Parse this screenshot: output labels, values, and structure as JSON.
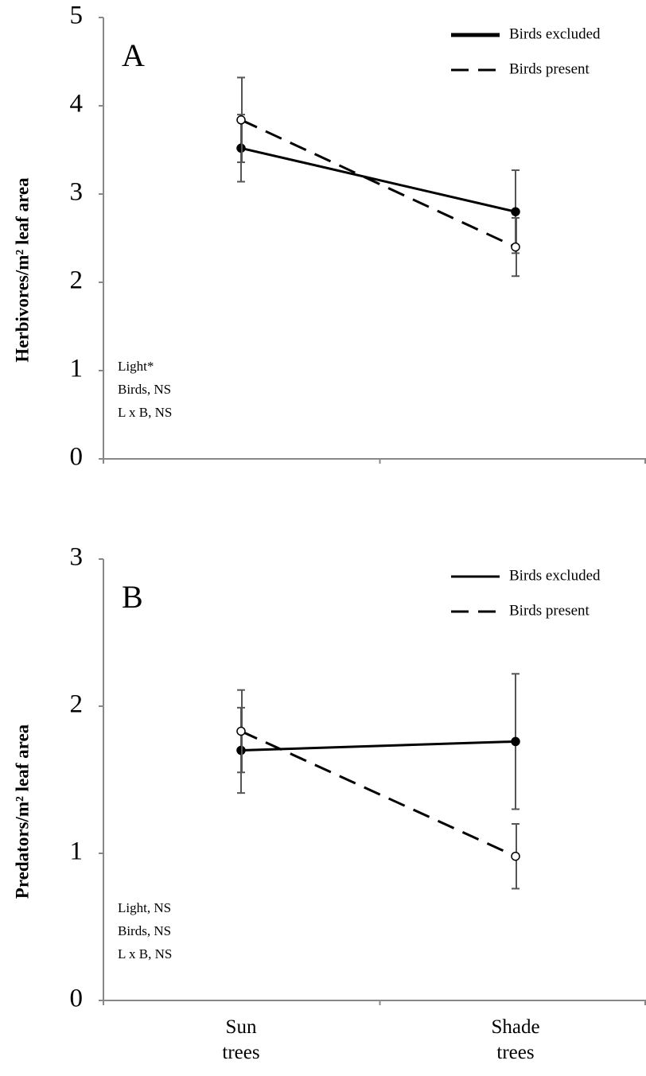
{
  "chart_data": [
    {
      "type": "line",
      "panel_label": "A",
      "ylabel": "Herbivores/m² leaf area",
      "categories": [
        null,
        null
      ],
      "series": [
        {
          "name": "Birds excluded",
          "color": "#000000",
          "linestyle": "solid",
          "marker": "filled",
          "values": [
            3.52,
            2.8
          ],
          "errors": [
            0.38,
            0.47
          ]
        },
        {
          "name": "Birds present",
          "color": "#000000",
          "linestyle": "dashed",
          "marker": "open",
          "values": [
            3.84,
            2.4
          ],
          "errors": [
            0.48,
            0.33
          ]
        }
      ],
      "ylim": [
        0,
        5
      ],
      "yticks": [
        0,
        1,
        2,
        3,
        4,
        5
      ],
      "legend": "upper right",
      "annotations": [
        "Light*",
        "Birds, NS",
        "L x B, NS"
      ]
    },
    {
      "type": "line",
      "panel_label": "B",
      "ylabel": "Predators/m² leaf area",
      "categories": [
        "Sun trees",
        "Shade trees"
      ],
      "series": [
        {
          "name": "Birds excluded",
          "color": "#000000",
          "linestyle": "solid",
          "marker": "filled",
          "values": [
            1.7,
            1.76
          ],
          "errors": [
            0.29,
            0.46
          ]
        },
        {
          "name": "Birds present",
          "color": "#000000",
          "linestyle": "dashed",
          "marker": "open",
          "values": [
            1.83,
            0.98
          ],
          "errors": [
            0.28,
            0.22
          ]
        }
      ],
      "ylim": [
        0,
        3
      ],
      "yticks": [
        0,
        1,
        2,
        3
      ],
      "legend": "upper right",
      "annotations": [
        "Light, NS",
        "Birds, NS",
        "L x B, NS"
      ]
    }
  ]
}
